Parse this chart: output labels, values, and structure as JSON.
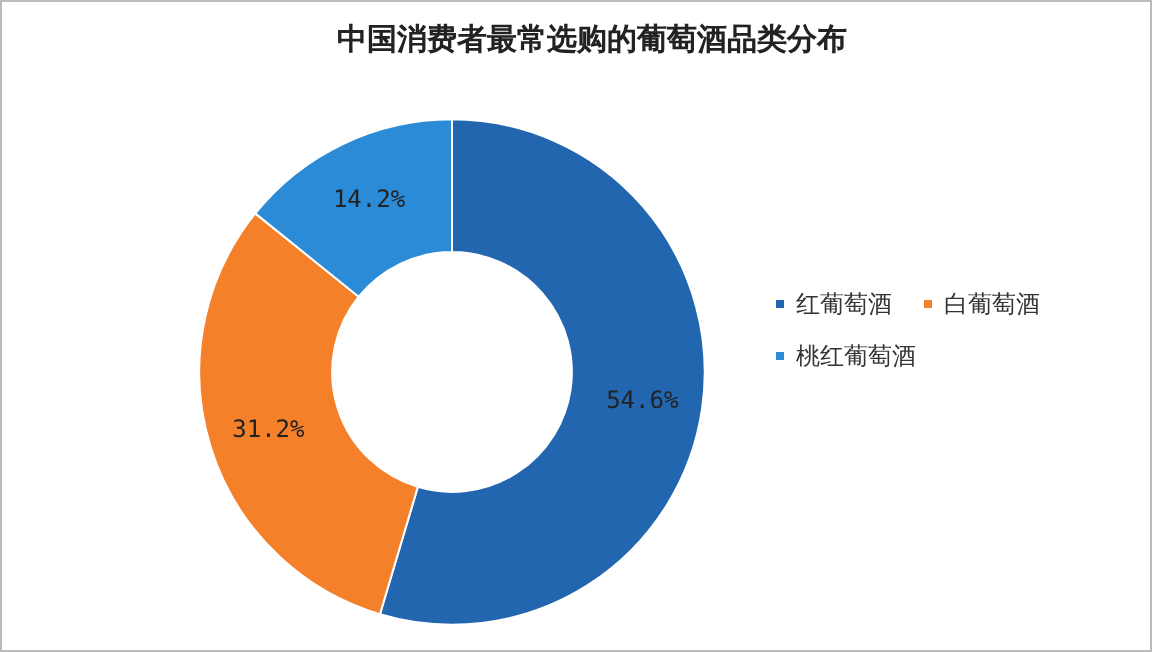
{
  "chart_data": {
    "type": "donut",
    "title": "中国消费者最常选购的葡萄酒品类分布",
    "categories": [
      "红葡萄酒",
      "白葡萄酒",
      "桃红葡萄酒"
    ],
    "values": [
      54.6,
      31.2,
      14.2
    ],
    "colors": [
      "#2366b0",
      "#f4812a",
      "#2b8bd6"
    ],
    "value_labels": [
      "54.6%",
      "31.2%",
      "14.2%"
    ],
    "legend": "right"
  }
}
